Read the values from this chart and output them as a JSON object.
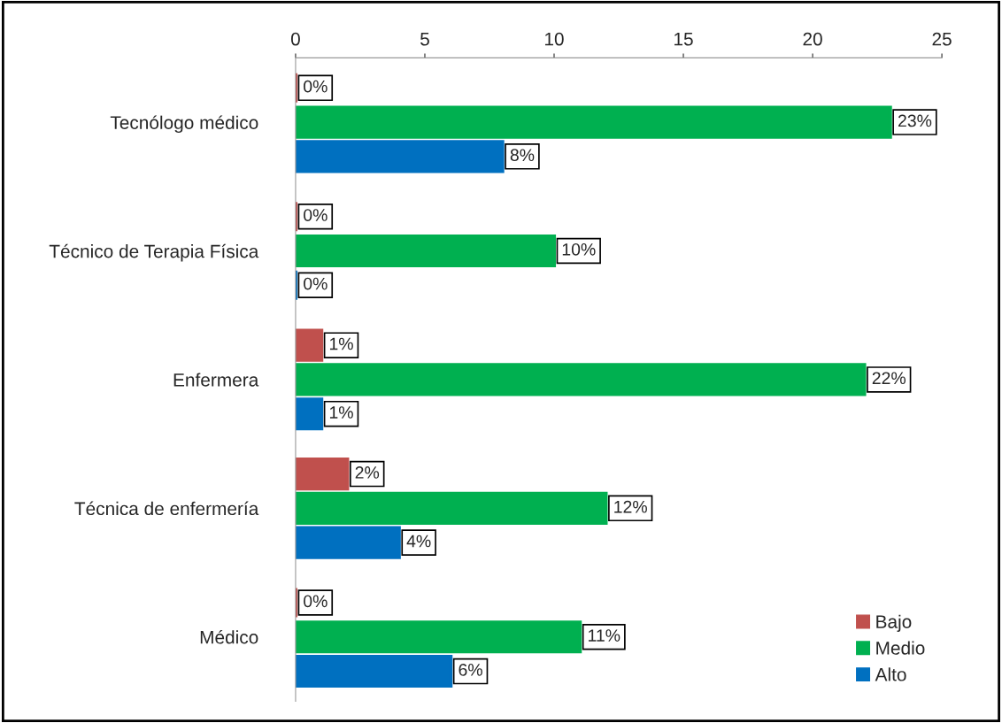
{
  "chart_data": {
    "type": "bar",
    "orientation": "horizontal",
    "categories": [
      "Tecnólogo médico",
      "Técnico de Terapia Física",
      "Enfermera",
      "Técnica de enfermería",
      "Médico"
    ],
    "series": [
      {
        "name": "Bajo",
        "color": "#c0504d",
        "values": [
          0,
          0,
          1,
          2,
          0
        ],
        "value_labels": [
          "0%",
          "0%",
          "1%",
          "2%",
          "0%"
        ]
      },
      {
        "name": "Medio",
        "color": "#00b050",
        "values": [
          23,
          10,
          22,
          12,
          11
        ],
        "value_labels": [
          "23%",
          "10%",
          "22%",
          "12%",
          "11%"
        ]
      },
      {
        "name": "Alto",
        "color": "#0070c0",
        "values": [
          8,
          0,
          1,
          4,
          6
        ],
        "value_labels": [
          "8%",
          "0%",
          "1%",
          "4%",
          "6%"
        ]
      }
    ],
    "xlim": [
      0,
      25
    ],
    "xticks": [
      0,
      5,
      10,
      15,
      20,
      25
    ],
    "grid": false,
    "legend": "bottom right"
  }
}
